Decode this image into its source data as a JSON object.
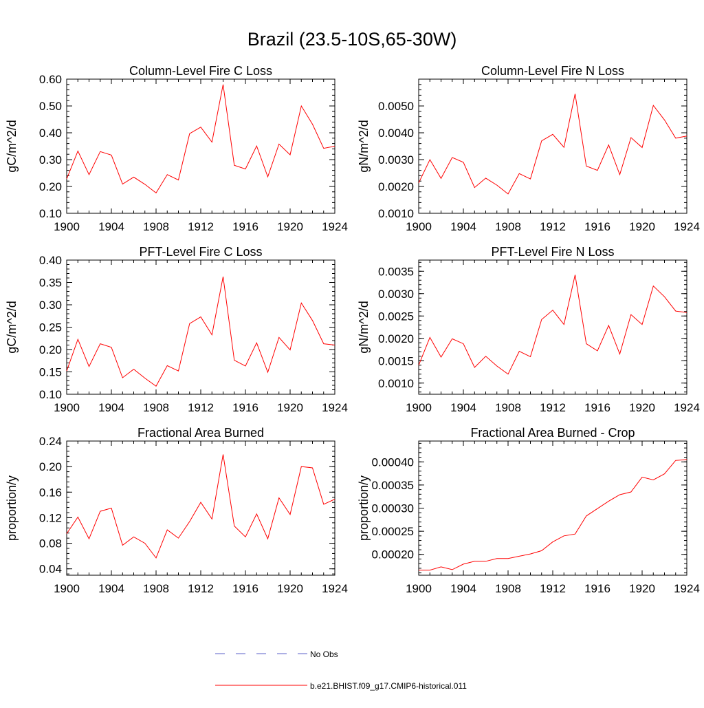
{
  "figure": {
    "title": "Brazil (23.5-10S,65-30W)"
  },
  "legend": {
    "entries": [
      {
        "label": "No Obs",
        "color": "#5a5fc8",
        "dash": true
      },
      {
        "label": "b.e21.BHIST.f09_g17.CMIP6-historical.011",
        "color": "#ff0000",
        "dash": false
      }
    ]
  },
  "chart_data": [
    {
      "type": "line",
      "title": "Column-Level Fire C Loss",
      "xlabel": "",
      "ylabel": "gC/m^2/d",
      "xlim": [
        1900,
        1924
      ],
      "ylim": [
        0.1,
        0.6
      ],
      "x_ticks": [
        "1900",
        "1904",
        "1908",
        "1912",
        "1916",
        "1920",
        "1924"
      ],
      "y_ticks": [
        "0.10",
        "0.20",
        "0.30",
        "0.40",
        "0.50",
        "0.60"
      ],
      "y_tick_values": [
        0.1,
        0.2,
        0.3,
        0.4,
        0.5,
        0.6
      ],
      "grid": false,
      "series": [
        {
          "color": "#ff0000",
          "x": [
            1900,
            1901,
            1902,
            1903,
            1904,
            1905,
            1906,
            1907,
            1908,
            1909,
            1910,
            1911,
            1912,
            1913,
            1914,
            1915,
            1916,
            1917,
            1918,
            1919,
            1920,
            1921,
            1922,
            1923,
            1924
          ],
          "y": [
            0.228,
            0.332,
            0.244,
            0.33,
            0.317,
            0.209,
            0.235,
            0.208,
            0.176,
            0.244,
            0.224,
            0.397,
            0.421,
            0.365,
            0.58,
            0.279,
            0.265,
            0.351,
            0.236,
            0.358,
            0.318,
            0.5,
            0.432,
            0.342,
            0.35
          ]
        }
      ]
    },
    {
      "type": "line",
      "title": "Column-Level Fire N Loss",
      "xlabel": "",
      "ylabel": "gN/m^2/d",
      "xlim": [
        1900,
        1924
      ],
      "ylim": [
        0.001,
        0.006
      ],
      "x_ticks": [
        "1900",
        "1904",
        "1908",
        "1912",
        "1916",
        "1920",
        "1924"
      ],
      "y_ticks": [
        "0.0010",
        "0.0020",
        "0.0030",
        "0.0040",
        "0.0050"
      ],
      "y_tick_values": [
        0.001,
        0.002,
        0.003,
        0.004,
        0.005
      ],
      "grid": false,
      "series": [
        {
          "color": "#ff0000",
          "x": [
            1900,
            1901,
            1902,
            1903,
            1904,
            1905,
            1906,
            1907,
            1908,
            1909,
            1910,
            1911,
            1912,
            1913,
            1914,
            1915,
            1916,
            1917,
            1918,
            1919,
            1920,
            1921,
            1922,
            1923,
            1924
          ],
          "y": [
            0.00213,
            0.003,
            0.0023,
            0.00308,
            0.0029,
            0.00196,
            0.00231,
            0.00205,
            0.00172,
            0.00248,
            0.00228,
            0.0037,
            0.00394,
            0.00346,
            0.00545,
            0.00276,
            0.0026,
            0.00355,
            0.00244,
            0.00382,
            0.00345,
            0.00502,
            0.00448,
            0.0038,
            0.00388
          ]
        }
      ]
    },
    {
      "type": "line",
      "title": "PFT-Level Fire C Loss",
      "xlabel": "",
      "ylabel": "gC/m^2/d",
      "xlim": [
        1900,
        1924
      ],
      "ylim": [
        0.1,
        0.4
      ],
      "x_ticks": [
        "1900",
        "1904",
        "1908",
        "1912",
        "1916",
        "1920",
        "1924"
      ],
      "y_ticks": [
        "0.10",
        "0.15",
        "0.20",
        "0.25",
        "0.30",
        "0.35",
        "0.40"
      ],
      "y_tick_values": [
        0.1,
        0.15,
        0.2,
        0.25,
        0.3,
        0.35,
        0.4
      ],
      "grid": false,
      "series": [
        {
          "color": "#ff0000",
          "x": [
            1900,
            1901,
            1902,
            1903,
            1904,
            1905,
            1906,
            1907,
            1908,
            1909,
            1910,
            1911,
            1912,
            1913,
            1914,
            1915,
            1916,
            1917,
            1918,
            1919,
            1920,
            1921,
            1922,
            1923,
            1924
          ],
          "y": [
            0.152,
            0.223,
            0.162,
            0.213,
            0.205,
            0.137,
            0.156,
            0.136,
            0.118,
            0.164,
            0.152,
            0.258,
            0.273,
            0.233,
            0.363,
            0.176,
            0.163,
            0.215,
            0.149,
            0.227,
            0.199,
            0.304,
            0.265,
            0.213,
            0.21
          ]
        }
      ]
    },
    {
      "type": "line",
      "title": "PFT-Level Fire N Loss",
      "xlabel": "",
      "ylabel": "gN/m^2/d",
      "xlim": [
        1900,
        1924
      ],
      "ylim": [
        0.00075,
        0.00375
      ],
      "x_ticks": [
        "1900",
        "1904",
        "1908",
        "1912",
        "1916",
        "1920",
        "1924"
      ],
      "y_ticks": [
        "0.0010",
        "0.0015",
        "0.0020",
        "0.0025",
        "0.0030",
        "0.0035"
      ],
      "y_tick_values": [
        0.001,
        0.0015,
        0.002,
        0.0025,
        0.003,
        0.0035
      ],
      "grid": false,
      "series": [
        {
          "color": "#ff0000",
          "x": [
            1900,
            1901,
            1902,
            1903,
            1904,
            1905,
            1906,
            1907,
            1908,
            1909,
            1910,
            1911,
            1912,
            1913,
            1914,
            1915,
            1916,
            1917,
            1918,
            1919,
            1920,
            1921,
            1922,
            1923,
            1924
          ],
          "y": [
            0.0014,
            0.00202,
            0.00158,
            0.00199,
            0.00188,
            0.00135,
            0.0016,
            0.00138,
            0.0012,
            0.00171,
            0.00159,
            0.00242,
            0.00263,
            0.00231,
            0.00342,
            0.00188,
            0.00172,
            0.00229,
            0.00165,
            0.00253,
            0.00231,
            0.00317,
            0.00293,
            0.00261,
            0.00258
          ]
        }
      ]
    },
    {
      "type": "line",
      "title": "Fractional Area Burned",
      "xlabel": "",
      "ylabel": "proportion/y",
      "xlim": [
        1900,
        1924
      ],
      "ylim": [
        0.03,
        0.24
      ],
      "x_ticks": [
        "1900",
        "1904",
        "1908",
        "1912",
        "1916",
        "1920",
        "1924"
      ],
      "y_ticks": [
        "0.04",
        "0.08",
        "0.12",
        "0.16",
        "0.20",
        "0.24"
      ],
      "y_tick_values": [
        0.04,
        0.08,
        0.12,
        0.16,
        0.2,
        0.24
      ],
      "grid": false,
      "series": [
        {
          "color": "#ff0000",
          "x": [
            1900,
            1901,
            1902,
            1903,
            1904,
            1905,
            1906,
            1907,
            1908,
            1909,
            1910,
            1911,
            1912,
            1913,
            1914,
            1915,
            1916,
            1917,
            1918,
            1919,
            1920,
            1921,
            1922,
            1923,
            1924
          ],
          "y": [
            0.095,
            0.121,
            0.087,
            0.13,
            0.135,
            0.077,
            0.09,
            0.08,
            0.057,
            0.101,
            0.088,
            0.114,
            0.144,
            0.118,
            0.219,
            0.107,
            0.09,
            0.126,
            0.087,
            0.151,
            0.125,
            0.2,
            0.198,
            0.141,
            0.149
          ]
        }
      ]
    },
    {
      "type": "line",
      "title": "Fractional Area Burned - Crop",
      "xlabel": "",
      "ylabel": "proportion/y",
      "xlim": [
        1900,
        1924
      ],
      "ylim": [
        0.000155,
        0.000445
      ],
      "x_ticks": [
        "1900",
        "1904",
        "1908",
        "1912",
        "1916",
        "1920",
        "1924"
      ],
      "y_ticks": [
        "0.00020",
        "0.00025",
        "0.00030",
        "0.00035",
        "0.00040"
      ],
      "y_tick_values": [
        0.0002,
        0.00025,
        0.0003,
        0.00035,
        0.0004
      ],
      "grid": false,
      "series": [
        {
          "color": "#ff0000",
          "x": [
            1900,
            1901,
            1902,
            1903,
            1904,
            1905,
            1906,
            1907,
            1908,
            1909,
            1910,
            1911,
            1912,
            1913,
            1914,
            1915,
            1916,
            1917,
            1918,
            1919,
            1920,
            1921,
            1922,
            1923,
            1924
          ],
          "y": [
            0.000166,
            0.000166,
            0.000173,
            0.000167,
            0.000179,
            0.000185,
            0.000185,
            0.000191,
            0.000191,
            0.000196,
            0.000201,
            0.000208,
            0.000227,
            0.00024,
            0.000244,
            0.000283,
            0.000299,
            0.000315,
            0.000329,
            0.000335,
            0.000367,
            0.000361,
            0.000374,
            0.000403,
            0.000405
          ]
        }
      ]
    }
  ]
}
